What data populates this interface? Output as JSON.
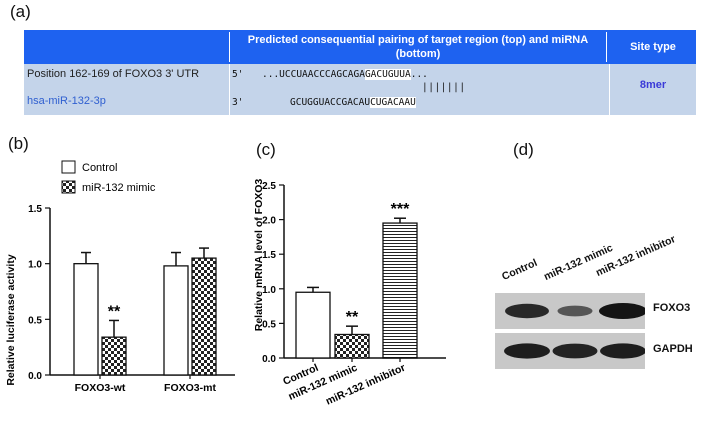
{
  "panels": {
    "a": "(a)",
    "b": "(b)",
    "c": "(c)",
    "d": "(d)"
  },
  "table": {
    "header_pairing": "Predicted consequential pairing of target region (top) and miRNA (bottom)",
    "header_site": "Site type",
    "row_target_label": "Position 162-169 of FOXO3 3' UTR",
    "row_mirna_label": "hsa-miR-132-3p",
    "target_prime": "5'",
    "target_seq_pre": "...UCCUAACCCAGCAGA",
    "target_seq_seed": "GACUGUUA",
    "target_seq_post": "...",
    "pair_bars": "|||||||",
    "mirna_prime": "3'",
    "mirna_seq_pre": "GCUGGUACCGACAU",
    "mirna_seq_seed": "CUGACAAU",
    "site_type": "8mer",
    "colors": {
      "header": "#1e62f0",
      "body": "#c4d4ea",
      "mirna_text": "#2f5fd0",
      "site_text": "#3a3ad8"
    }
  },
  "chart_data": [
    {
      "type": "bar",
      "ylabel": "Relative luciferase activity",
      "ylim": [
        0,
        1.5
      ],
      "yticks": [
        "0.0",
        "0.5",
        "1.0",
        "1.5"
      ],
      "categories": [
        "FOXO3-wt",
        "FOXO3-mt"
      ],
      "legend": [
        "Control",
        "miR-132 mimic"
      ],
      "legend_position": "top",
      "series": [
        {
          "name": "Control",
          "values": [
            1.0,
            0.98
          ],
          "errors": [
            0.1,
            0.12
          ],
          "pattern": "white"
        },
        {
          "name": "miR-132 mimic",
          "values": [
            0.34,
            1.05
          ],
          "errors": [
            0.15,
            0.09
          ],
          "pattern": "checker"
        }
      ],
      "annotations": [
        {
          "category": "FOXO3-wt",
          "series": "miR-132 mimic",
          "text": "**"
        }
      ]
    },
    {
      "type": "bar",
      "ylabel": "Relative mRNA level of FOXO3",
      "ylim": [
        0,
        2.5
      ],
      "yticks": [
        "0.0",
        "0.5",
        "1.0",
        "1.5",
        "2.0",
        "2.5"
      ],
      "categories": [
        "Control",
        "miR-132 mimic",
        "miR-132 inhibitor"
      ],
      "values": [
        0.95,
        0.34,
        1.95
      ],
      "errors": [
        0.07,
        0.12,
        0.07
      ],
      "patterns": [
        "white",
        "checker",
        "hstripe"
      ],
      "annotations": [
        "",
        "**",
        "***"
      ]
    }
  ],
  "blot": {
    "lanes": [
      "Control",
      "miR-132 mimic",
      "miR-132 inhibitor"
    ],
    "bands": [
      {
        "label": "FOXO3",
        "intensities": [
          0.8,
          0.35,
          1.0
        ]
      },
      {
        "label": "GAPDH",
        "intensities": [
          0.9,
          0.85,
          0.9
        ]
      }
    ]
  }
}
